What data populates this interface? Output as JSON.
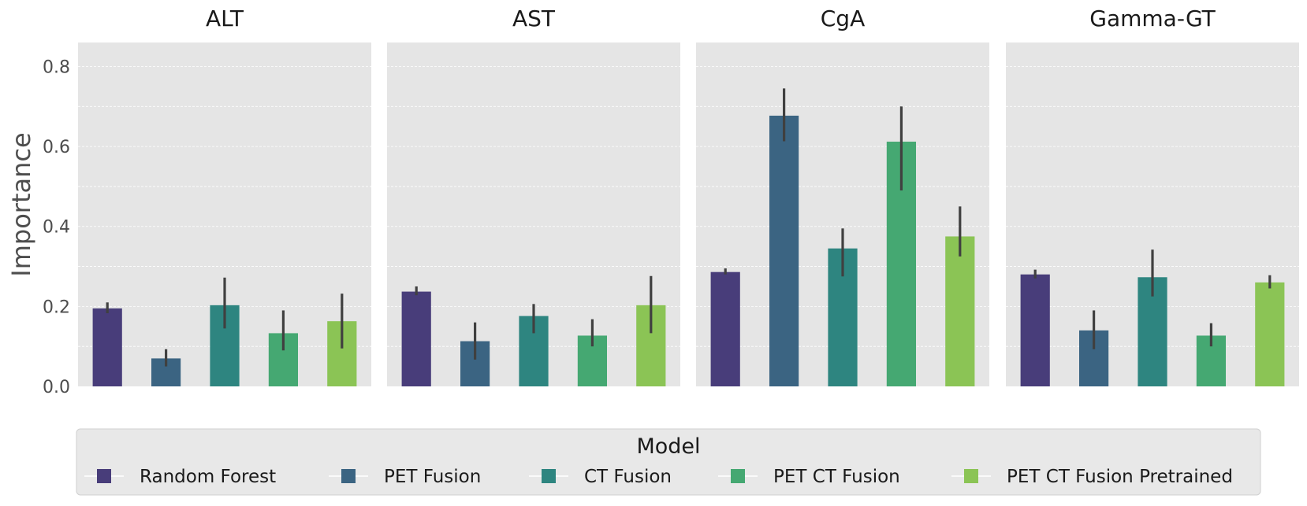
{
  "chart_data": {
    "type": "bar",
    "ylabel": "Importance",
    "ylim": [
      0,
      0.86
    ],
    "yticks": [
      0.0,
      0.2,
      0.4,
      0.6,
      0.8
    ],
    "ytick_labels": [
      "0.0",
      "0.2",
      "0.4",
      "0.6",
      "0.8"
    ],
    "grid": true,
    "legend": {
      "title": "Model",
      "placement": "bottom"
    },
    "series": [
      {
        "name": "Random Forest",
        "color": "#483d7a"
      },
      {
        "name": "PET Fusion",
        "color": "#3b6482"
      },
      {
        "name": "CT Fusion",
        "color": "#2e8580"
      },
      {
        "name": "PET CT Fusion",
        "color": "#45a872"
      },
      {
        "name": "PET CT Fusion Pretrained",
        "color": "#8bc455"
      }
    ],
    "panels": [
      {
        "title": "ALT",
        "values": [
          0.195,
          0.07,
          0.203,
          0.133,
          0.163
        ],
        "err_low": [
          0.183,
          0.05,
          0.145,
          0.09,
          0.095
        ],
        "err_high": [
          0.21,
          0.093,
          0.272,
          0.19,
          0.232
        ]
      },
      {
        "title": "AST",
        "values": [
          0.237,
          0.113,
          0.176,
          0.127,
          0.203
        ],
        "err_low": [
          0.228,
          0.067,
          0.133,
          0.1,
          0.133
        ],
        "err_high": [
          0.25,
          0.16,
          0.206,
          0.168,
          0.276
        ]
      },
      {
        "title": "CgA",
        "values": [
          0.286,
          0.677,
          0.345,
          0.612,
          0.375
        ],
        "err_low": [
          0.28,
          0.613,
          0.275,
          0.49,
          0.325
        ],
        "err_high": [
          0.295,
          0.745,
          0.395,
          0.7,
          0.45
        ]
      },
      {
        "title": "Gamma-GT",
        "values": [
          0.28,
          0.14,
          0.273,
          0.127,
          0.26
        ],
        "err_low": [
          0.27,
          0.093,
          0.225,
          0.1,
          0.245
        ],
        "err_high": [
          0.292,
          0.19,
          0.342,
          0.158,
          0.278
        ]
      }
    ]
  }
}
